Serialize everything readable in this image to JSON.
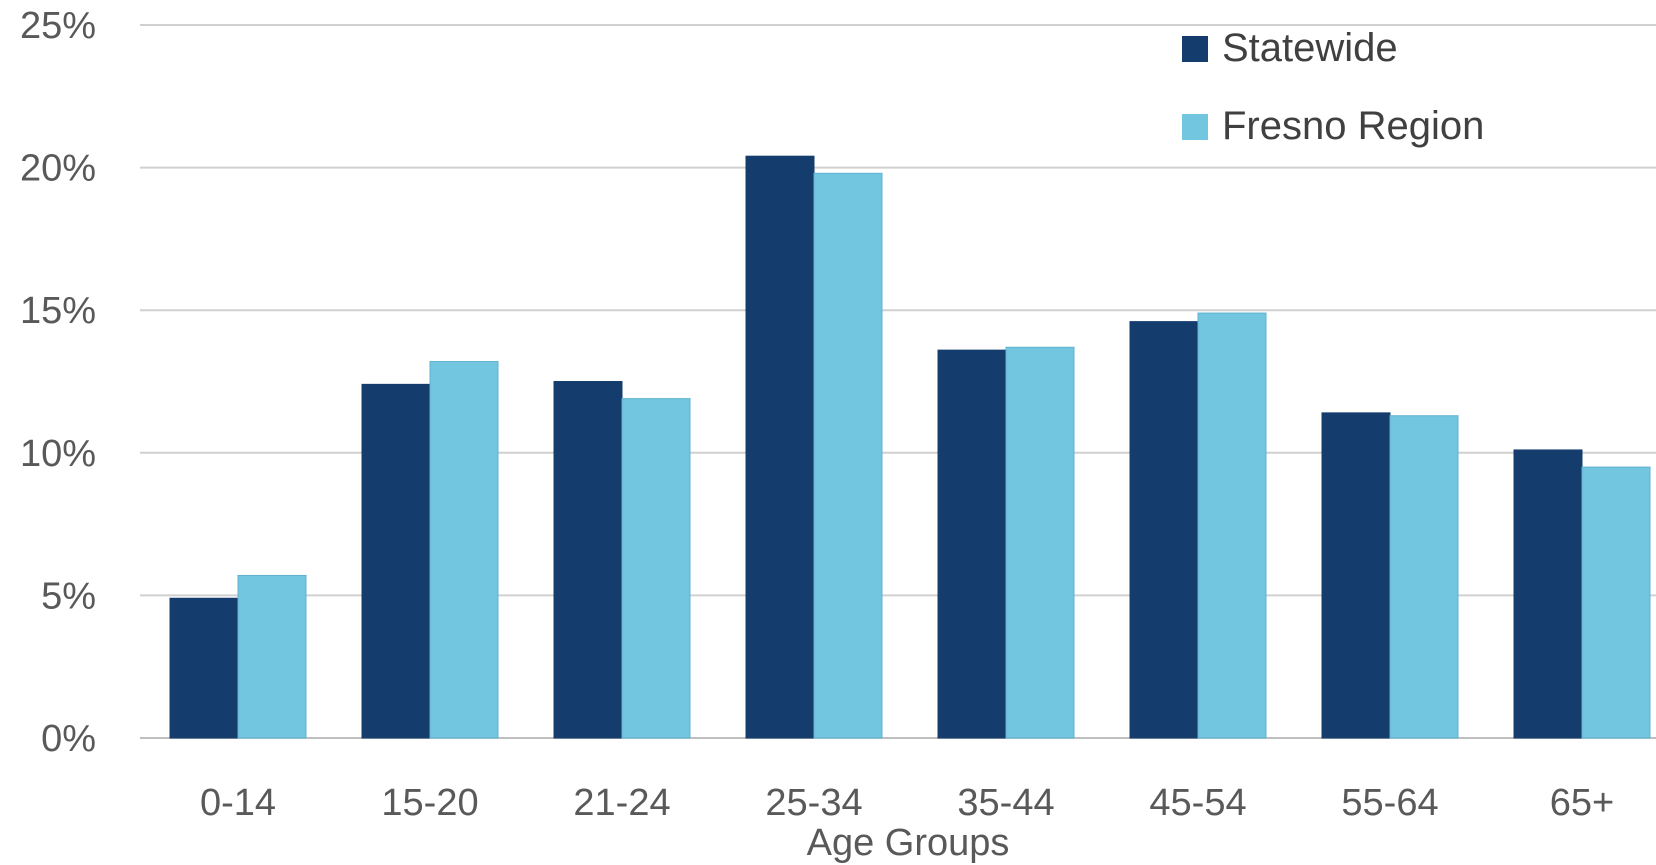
{
  "chart_data": {
    "type": "bar",
    "title": "",
    "xlabel": "Age Groups",
    "ylabel": "",
    "categories": [
      "0-14",
      "15-20",
      "21-24",
      "25-34",
      "35-44",
      "45-54",
      "55-64",
      "65+"
    ],
    "series": [
      {
        "name": "Statewide",
        "color": "#143d6e",
        "values": [
          4.9,
          12.4,
          12.5,
          20.4,
          13.6,
          14.6,
          11.4,
          10.1
        ]
      },
      {
        "name": "Fresno Region",
        "color": "#73c6e0",
        "values": [
          5.7,
          13.2,
          11.9,
          19.8,
          13.7,
          14.9,
          11.3,
          9.5
        ]
      }
    ],
    "ylim": [
      0,
      25
    ],
    "yticks": [
      "0%",
      "5%",
      "10%",
      "15%",
      "20%",
      "25%"
    ],
    "ytick_values": [
      0,
      5,
      10,
      15,
      20,
      25
    ],
    "grid": true,
    "legend_position": "top-right"
  }
}
